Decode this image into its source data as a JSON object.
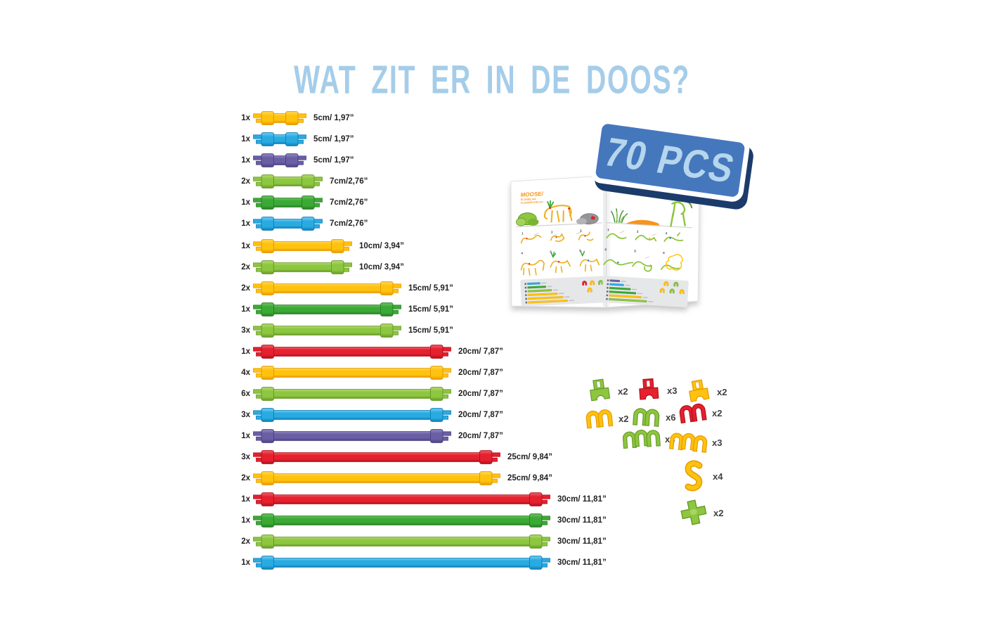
{
  "title": "WAT ZIT ER IN DE DOOS?",
  "title_color": "#A5CDE9",
  "text_color": "#231F20",
  "badge": {
    "text": "70 PCS",
    "bg": "#4577BD",
    "text_color": "#B5D6EC",
    "shadow": "#1B3B6B"
  },
  "palette": {
    "yellow": {
      "base": "#FFC20E",
      "light": "#FFDA5E",
      "dark": "#E59A00"
    },
    "blue": {
      "base": "#29ABE2",
      "light": "#79CFF2",
      "dark": "#0E7FB8"
    },
    "purple": {
      "base": "#6A5EA4",
      "light": "#938ABF",
      "dark": "#4D4283"
    },
    "lightgreen": {
      "base": "#8DC63F",
      "light": "#B7DC74",
      "dark": "#679A28"
    },
    "green": {
      "base": "#3BAA35",
      "light": "#6FC465",
      "dark": "#2A7F26"
    },
    "red": {
      "base": "#E6202E",
      "light": "#F0626B",
      "dark": "#B2111D"
    }
  },
  "rods": [
    {
      "qty": "1x",
      "color": "yellow",
      "length_cm": 5,
      "label": "5cm/ 1,97”"
    },
    {
      "qty": "1x",
      "color": "blue",
      "length_cm": 5,
      "label": "5cm/ 1,97”"
    },
    {
      "qty": "1x",
      "color": "purple",
      "length_cm": 5,
      "label": "5cm/ 1,97”"
    },
    {
      "qty": "2x",
      "color": "lightgreen",
      "length_cm": 7,
      "label": "7cm/2,76”"
    },
    {
      "qty": "1x",
      "color": "green",
      "length_cm": 7,
      "label": "7cm/2,76”"
    },
    {
      "qty": "1x",
      "color": "blue",
      "length_cm": 7,
      "label": "7cm/2,76”"
    },
    {
      "qty": "1x",
      "color": "yellow",
      "length_cm": 10,
      "label": "10cm/ 3,94”"
    },
    {
      "qty": "2x",
      "color": "lightgreen",
      "length_cm": 10,
      "label": "10cm/ 3,94”"
    },
    {
      "qty": "2x",
      "color": "yellow",
      "length_cm": 15,
      "label": "15cm/ 5,91”"
    },
    {
      "qty": "1x",
      "color": "green",
      "length_cm": 15,
      "label": "15cm/ 5,91”"
    },
    {
      "qty": "3x",
      "color": "lightgreen",
      "length_cm": 15,
      "label": "15cm/ 5,91”"
    },
    {
      "qty": "1x",
      "color": "red",
      "length_cm": 20,
      "label": "20cm/ 7,87”"
    },
    {
      "qty": "4x",
      "color": "yellow",
      "length_cm": 20,
      "label": "20cm/ 7,87”"
    },
    {
      "qty": "6x",
      "color": "lightgreen",
      "length_cm": 20,
      "label": "20cm/ 7,87”"
    },
    {
      "qty": "3x",
      "color": "blue",
      "length_cm": 20,
      "label": "20cm/ 7,87”"
    },
    {
      "qty": "1x",
      "color": "purple",
      "length_cm": 20,
      "label": "20cm/ 7,87”"
    },
    {
      "qty": "3x",
      "color": "red",
      "length_cm": 25,
      "label": "25cm/ 9,84”"
    },
    {
      "qty": "2x",
      "color": "yellow",
      "length_cm": 25,
      "label": "25cm/ 9,84”"
    },
    {
      "qty": "1x",
      "color": "red",
      "length_cm": 30,
      "label": "30cm/ 11,81”"
    },
    {
      "qty": "1x",
      "color": "green",
      "length_cm": 30,
      "label": "30cm/ 11,81”"
    },
    {
      "qty": "2x",
      "color": "lightgreen",
      "length_cm": 30,
      "label": "30cm/ 11,81”"
    },
    {
      "qty": "1x",
      "color": "blue",
      "length_cm": 30,
      "label": "30cm/ 11,81”"
    }
  ],
  "connectors": [
    {
      "shape": "tee",
      "color": "lightgreen",
      "qty": "x2"
    },
    {
      "shape": "tee",
      "color": "red",
      "qty": "x3"
    },
    {
      "shape": "tee",
      "color": "yellow",
      "qty": "x2"
    },
    {
      "shape": "clip2",
      "color": "yellow",
      "qty": "x2"
    },
    {
      "shape": "clip2",
      "color": "lightgreen",
      "qty": "x6"
    },
    {
      "shape": "clip2",
      "color": "red",
      "qty": "x2"
    },
    {
      "shape": "clip3",
      "color": "lightgreen",
      "qty": "x3"
    },
    {
      "shape": "clip3",
      "color": "yellow",
      "qty": "x3"
    },
    {
      "shape": "zclip",
      "color": "yellow",
      "qty": "x4"
    },
    {
      "shape": "cross",
      "color": "lightgreen",
      "qty": "x2"
    }
  ],
  "booklet": {
    "title": "MOOSE/",
    "subtitle_lines": [
      "ELAN/ELAN/",
      "ELAND/ELG/ELCH"
    ],
    "title_color": "#F7941D",
    "step_numbers": [
      "1",
      "2",
      "3",
      "4",
      "5",
      "6"
    ],
    "left_parts_bars": [
      {
        "color": "blue",
        "len": 18
      },
      {
        "color": "green",
        "len": 26
      },
      {
        "color": "lightgreen",
        "len": 34
      },
      {
        "color": "yellow",
        "len": 42
      },
      {
        "color": "yellow",
        "len": 50
      },
      {
        "color": "yellow",
        "len": 56
      }
    ],
    "right_parts_bars": [
      {
        "color": "purple",
        "len": 14
      },
      {
        "color": "blue",
        "len": 20
      },
      {
        "color": "green",
        "len": 30
      },
      {
        "color": "green",
        "len": 38
      },
      {
        "color": "yellow",
        "len": 46
      },
      {
        "color": "lightgreen",
        "len": 54
      }
    ]
  }
}
